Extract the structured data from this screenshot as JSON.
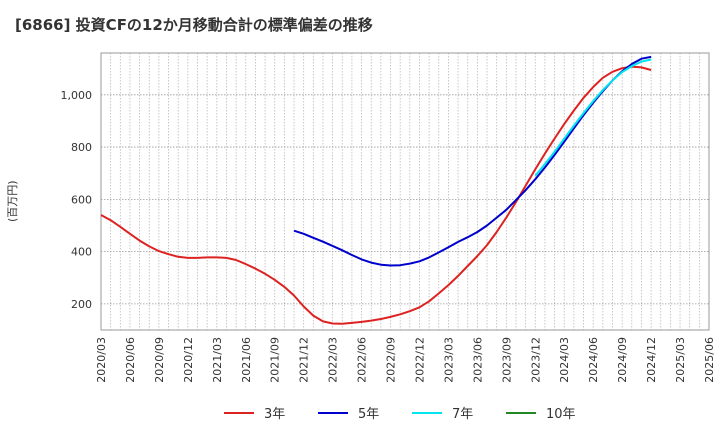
{
  "chart_data": {
    "type": "line",
    "title": "[6866]  投資CFの12か月移動合計の標準偏差の推移",
    "ylabel": "(百万円)",
    "xlabel": "",
    "ylim": [
      100,
      1160
    ],
    "yticks": [
      200,
      400,
      600,
      800,
      1000
    ],
    "yticklabels": [
      "200",
      "400",
      "600",
      "800",
      "1,000"
    ],
    "xticks": [
      "2020/03",
      "2020/06",
      "2020/09",
      "2020/12",
      "2021/03",
      "2021/06",
      "2021/09",
      "2021/12",
      "2022/03",
      "2022/06",
      "2022/09",
      "2022/12",
      "2023/03",
      "2023/06",
      "2023/09",
      "2023/12",
      "2024/03",
      "2024/06",
      "2024/09",
      "2024/12",
      "2025/03",
      "2025/06"
    ],
    "grid": true,
    "legend_position": "bottom",
    "series": [
      {
        "name": "3年",
        "color": "#dd2222",
        "points": [
          [
            "2020/03",
            540
          ],
          [
            "2020/04",
            520
          ],
          [
            "2020/05",
            495
          ],
          [
            "2020/06",
            468
          ],
          [
            "2020/07",
            442
          ],
          [
            "2020/08",
            420
          ],
          [
            "2020/09",
            402
          ],
          [
            "2020/10",
            390
          ],
          [
            "2020/11",
            380
          ],
          [
            "2020/12",
            376
          ],
          [
            "2021/01",
            376
          ],
          [
            "2021/02",
            378
          ],
          [
            "2021/03",
            378
          ],
          [
            "2021/04",
            376
          ],
          [
            "2021/05",
            368
          ],
          [
            "2021/06",
            352
          ],
          [
            "2021/07",
            335
          ],
          [
            "2021/08",
            315
          ],
          [
            "2021/09",
            292
          ],
          [
            "2021/10",
            265
          ],
          [
            "2021/11",
            232
          ],
          [
            "2021/12",
            190
          ],
          [
            "2022/01",
            155
          ],
          [
            "2022/02",
            133
          ],
          [
            "2022/03",
            125
          ],
          [
            "2022/04",
            124
          ],
          [
            "2022/05",
            127
          ],
          [
            "2022/06",
            131
          ],
          [
            "2022/07",
            136
          ],
          [
            "2022/08",
            142
          ],
          [
            "2022/09",
            150
          ],
          [
            "2022/10",
            160
          ],
          [
            "2022/11",
            172
          ],
          [
            "2022/12",
            187
          ],
          [
            "2023/01",
            210
          ],
          [
            "2023/02",
            240
          ],
          [
            "2023/03",
            272
          ],
          [
            "2023/04",
            307
          ],
          [
            "2023/05",
            345
          ],
          [
            "2023/06",
            383
          ],
          [
            "2023/07",
            425
          ],
          [
            "2023/08",
            475
          ],
          [
            "2023/09",
            530
          ],
          [
            "2023/10",
            590
          ],
          [
            "2023/11",
            652
          ],
          [
            "2023/12",
            715
          ],
          [
            "2024/01",
            775
          ],
          [
            "2024/02",
            833
          ],
          [
            "2024/03",
            888
          ],
          [
            "2024/04",
            940
          ],
          [
            "2024/05",
            988
          ],
          [
            "2024/06",
            1030
          ],
          [
            "2024/07",
            1065
          ],
          [
            "2024/08",
            1088
          ],
          [
            "2024/09",
            1102
          ],
          [
            "2024/10",
            1108
          ],
          [
            "2024/11",
            1105
          ],
          [
            "2024/12",
            1095
          ]
        ]
      },
      {
        "name": "5年",
        "color": "#0000cc",
        "points": [
          [
            "2021/11",
            480
          ],
          [
            "2021/12",
            468
          ],
          [
            "2022/01",
            453
          ],
          [
            "2022/02",
            438
          ],
          [
            "2022/03",
            422
          ],
          [
            "2022/04",
            405
          ],
          [
            "2022/05",
            387
          ],
          [
            "2022/06",
            370
          ],
          [
            "2022/07",
            358
          ],
          [
            "2022/08",
            350
          ],
          [
            "2022/09",
            347
          ],
          [
            "2022/10",
            348
          ],
          [
            "2022/11",
            354
          ],
          [
            "2022/12",
            363
          ],
          [
            "2023/01",
            378
          ],
          [
            "2023/02",
            397
          ],
          [
            "2023/03",
            417
          ],
          [
            "2023/04",
            437
          ],
          [
            "2023/05",
            455
          ],
          [
            "2023/06",
            475
          ],
          [
            "2023/07",
            500
          ],
          [
            "2023/08",
            530
          ],
          [
            "2023/09",
            560
          ],
          [
            "2023/10",
            597
          ],
          [
            "2023/11",
            635
          ],
          [
            "2023/12",
            677
          ],
          [
            "2024/01",
            722
          ],
          [
            "2024/02",
            770
          ],
          [
            "2024/03",
            820
          ],
          [
            "2024/04",
            872
          ],
          [
            "2024/05",
            922
          ],
          [
            "2024/06",
            970
          ],
          [
            "2024/07",
            1014
          ],
          [
            "2024/08",
            1055
          ],
          [
            "2024/09",
            1090
          ],
          [
            "2024/10",
            1118
          ],
          [
            "2024/11",
            1138
          ],
          [
            "2024/12",
            1145
          ]
        ]
      },
      {
        "name": "7年",
        "color": "#00e5ee",
        "points": [
          [
            "2023/12",
            690
          ],
          [
            "2024/01",
            735
          ],
          [
            "2024/02",
            782
          ],
          [
            "2024/03",
            832
          ],
          [
            "2024/04",
            882
          ],
          [
            "2024/05",
            930
          ],
          [
            "2024/06",
            976
          ],
          [
            "2024/07",
            1018
          ],
          [
            "2024/08",
            1055
          ],
          [
            "2024/09",
            1087
          ],
          [
            "2024/10",
            1110
          ],
          [
            "2024/11",
            1127
          ],
          [
            "2024/12",
            1135
          ]
        ]
      },
      {
        "name": "10年",
        "color": "#228822",
        "points": []
      }
    ]
  }
}
